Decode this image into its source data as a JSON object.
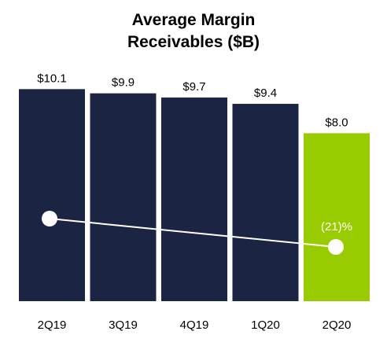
{
  "chart_data": {
    "type": "bar",
    "title_lines": [
      "Average Margin",
      "Receivables ($B)"
    ],
    "categories": [
      "2Q19",
      "3Q19",
      "4Q19",
      "1Q20",
      "2Q20"
    ],
    "values": [
      10.1,
      9.9,
      9.7,
      9.4,
      8.0
    ],
    "value_labels": [
      "$10.1",
      "$9.9",
      "$9.7",
      "$9.4",
      "$8.0"
    ],
    "ylim": [
      0,
      10.6
    ],
    "bar_colors": [
      "#1b2442",
      "#1b2442",
      "#1b2442",
      "#1b2442",
      "#99cc00"
    ],
    "change_line": {
      "from_category": "2Q19",
      "to_category": "2Q20",
      "label": "(21)%",
      "color": "#ffffff"
    },
    "grid": false,
    "legend": "none"
  }
}
